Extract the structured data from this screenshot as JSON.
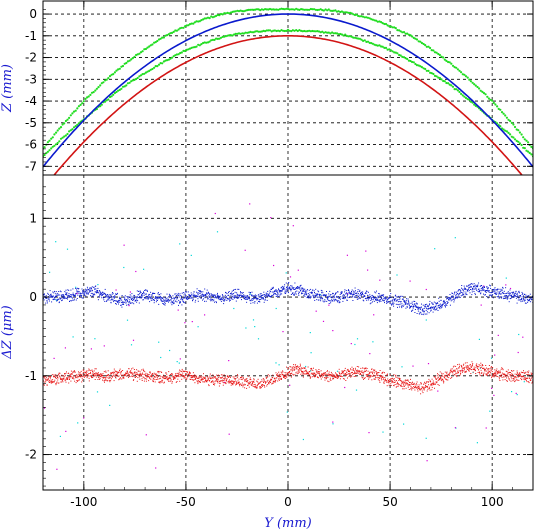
{
  "chart_data": [
    {
      "type": "line",
      "panel": "top",
      "ylabel": "Z (mm)",
      "xlim": [
        -120,
        120
      ],
      "ylim": [
        -7.4,
        0.6
      ],
      "yticks": [
        0,
        -1,
        -2,
        -3,
        -4,
        -5,
        -6,
        -7
      ],
      "grid": true,
      "series": [
        {
          "color": "#0a1acd",
          "curve": "parabola",
          "vertex": [
            0,
            0
          ],
          "k": 0.000488
        },
        {
          "color": "#d21414",
          "curve": "parabola",
          "vertex": [
            0,
            -1
          ],
          "k": 0.000488
        },
        {
          "color": "#22dd22",
          "style": "dots",
          "x": [
            -120,
            -110,
            -100,
            -90,
            -80,
            -70,
            -60,
            -50,
            -40,
            -30,
            -20,
            -10,
            0,
            10,
            20,
            30,
            40,
            50,
            60,
            70,
            80,
            90,
            100,
            110,
            120
          ],
          "y": [
            -6.2,
            -5.05,
            -4.0,
            -3.1,
            -2.3,
            -1.6,
            -1.0,
            -0.55,
            -0.2,
            0.05,
            0.18,
            0.22,
            0.22,
            0.22,
            0.18,
            0.05,
            -0.2,
            -0.55,
            -1.0,
            -1.6,
            -2.3,
            -3.1,
            -4.0,
            -5.05,
            -6.2
          ]
        },
        {
          "color": "#22dd22",
          "style": "dots",
          "x": [
            -120,
            -110,
            -100,
            -90,
            -80,
            -70,
            -60,
            -50,
            -40,
            -30,
            -20,
            -10,
            0,
            10,
            20,
            30,
            40,
            50,
            60,
            70,
            80,
            90,
            100,
            110,
            120
          ],
          "y": [
            -6.55,
            -5.65,
            -4.85,
            -4.05,
            -3.3,
            -2.7,
            -2.15,
            -1.65,
            -1.3,
            -1.0,
            -0.85,
            -0.78,
            -0.75,
            -0.78,
            -0.85,
            -1.0,
            -1.3,
            -1.65,
            -2.15,
            -2.7,
            -3.3,
            -4.05,
            -4.85,
            -5.65,
            -6.55
          ]
        }
      ]
    },
    {
      "type": "scatter",
      "panel": "bottom",
      "xlabel": "Y (mm)",
      "ylabel": "ΔZ (μm)",
      "xlim": [
        -120,
        120
      ],
      "ylim": [
        -2.45,
        1.55
      ],
      "xticks": [
        -100,
        -50,
        0,
        50,
        100
      ],
      "yticks": [
        1,
        0,
        -1,
        -2
      ],
      "grid": true,
      "series": [
        {
          "color": "#0a1acd",
          "baseline": 0,
          "x": [
            -120,
            -110,
            -100,
            -95,
            -90,
            -85,
            -80,
            -75,
            -70,
            -65,
            -60,
            -55,
            -50,
            -45,
            -40,
            -35,
            -30,
            -25,
            -20,
            -15,
            -10,
            -5,
            0,
            5,
            10,
            15,
            20,
            25,
            30,
            35,
            40,
            45,
            50,
            55,
            60,
            65,
            70,
            75,
            80,
            85,
            90,
            95,
            100,
            105,
            110,
            115,
            120
          ],
          "y": [
            0.0,
            0.02,
            0.06,
            0.08,
            0.03,
            -0.02,
            -0.05,
            0.0,
            0.03,
            0.0,
            -0.03,
            -0.02,
            0.0,
            0.03,
            0.02,
            -0.02,
            0.0,
            0.03,
            0.0,
            -0.03,
            0.05,
            0.07,
            0.12,
            0.1,
            0.05,
            0.02,
            0.0,
            0.0,
            0.05,
            0.03,
            0.0,
            0.0,
            -0.02,
            -0.05,
            -0.1,
            -0.15,
            -0.13,
            -0.08,
            0.0,
            0.08,
            0.12,
            0.1,
            0.07,
            0.05,
            0.02,
            0.0,
            -0.02
          ]
        },
        {
          "color": "#e81a1a",
          "baseline": -1,
          "x": [
            -120,
            -110,
            -100,
            -95,
            -90,
            -85,
            -80,
            -75,
            -70,
            -65,
            -60,
            -55,
            -50,
            -45,
            -40,
            -35,
            -30,
            -25,
            -20,
            -15,
            -10,
            -5,
            0,
            5,
            10,
            15,
            20,
            25,
            30,
            35,
            40,
            45,
            50,
            55,
            60,
            65,
            70,
            75,
            80,
            85,
            90,
            95,
            100,
            105,
            110,
            115,
            120
          ],
          "y": [
            -1.05,
            -1.02,
            -0.98,
            -0.97,
            -1.0,
            -0.98,
            -0.97,
            -0.98,
            -1.0,
            -1.0,
            -1.02,
            -1.0,
            -0.98,
            -1.02,
            -1.05,
            -1.05,
            -1.03,
            -1.05,
            -1.08,
            -1.1,
            -1.05,
            -1.02,
            -0.95,
            -0.9,
            -0.95,
            -0.98,
            -1.0,
            -1.0,
            -0.95,
            -0.95,
            -0.98,
            -1.0,
            -1.05,
            -1.08,
            -1.12,
            -1.15,
            -1.1,
            -1.02,
            -0.95,
            -0.9,
            -0.88,
            -0.92,
            -0.95,
            -0.98,
            -1.0,
            -1.0,
            -1.02
          ]
        },
        {
          "color": "#00d8d8",
          "style": "sparse"
        },
        {
          "color": "#d800d8",
          "style": "sparse"
        }
      ]
    }
  ]
}
